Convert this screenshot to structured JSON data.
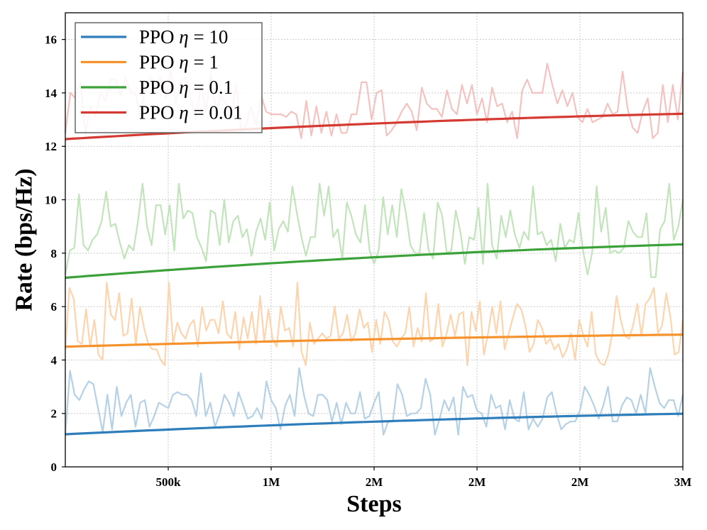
{
  "chart_data": {
    "type": "line",
    "title": "",
    "xlabel": "Steps",
    "ylabel": "Rate (bps/Hz)",
    "xlim": [
      0,
      3000000
    ],
    "ylim": [
      0,
      17
    ],
    "grid": true,
    "legend_position": "top-left",
    "x_tick_values": [
      500000,
      1000000,
      1500000,
      2000000,
      2500000,
      3000000
    ],
    "x_tick_labels": [
      "500k",
      "1M",
      "2M",
      "2M",
      "2M",
      "3M"
    ],
    "y_tick_values": [
      0,
      2,
      4,
      6,
      8,
      10,
      12,
      14,
      16
    ],
    "y_tick_labels": [
      "0",
      "2",
      "4",
      "6",
      "8",
      "10",
      "12",
      "14",
      "16"
    ],
    "series": [
      {
        "name": "PPO η = 10",
        "label_prefix": "PPO ",
        "label_symbol": "η",
        "label_suffix": " = 10",
        "color": "#2f7ebc",
        "raw_color": "#b5d1e6",
        "smooth_start": 1.22,
        "smooth_end": 1.99,
        "raw": [
          1.2,
          3.6,
          2.7,
          2.5,
          2.9,
          3.2,
          3.1,
          2.2,
          1.3,
          2.7,
          1.4,
          3.0,
          1.9,
          2.4,
          2.7,
          1.5,
          2.4,
          2.5,
          1.5,
          1.9,
          2.4,
          2.3,
          2.2,
          2.7,
          2.8,
          2.7,
          2.7,
          2.5,
          1.9,
          3.5,
          1.9,
          2.4,
          1.5,
          2.0,
          2.7,
          2.4,
          1.9,
          2.8,
          2.3,
          1.8,
          1.9,
          2.2,
          1.8,
          3.2,
          2.5,
          2.2,
          1.4,
          2.3,
          2.7,
          1.9,
          3.7,
          2.7,
          2.0,
          1.9,
          2.7,
          2.7,
          2.5,
          1.7,
          2.4,
          1.6,
          2.4,
          2.0,
          2.0,
          2.8,
          1.8,
          1.9,
          2.4,
          2.8,
          1.2,
          1.7,
          1.7,
          3.1,
          2.7,
          1.9,
          2.0,
          2.0,
          2.2,
          3.3,
          2.7,
          1.2,
          1.8,
          2.5,
          2.1,
          2.6,
          1.2,
          3.0,
          2.6,
          2.7,
          2.1,
          2.0,
          1.5,
          2.7,
          2.2,
          2.3,
          1.4,
          2.5,
          1.8,
          1.7,
          2.8,
          1.4,
          1.8,
          1.5,
          1.8,
          2.6,
          2.8,
          2.0,
          1.4,
          1.6,
          1.7,
          1.7,
          2.1,
          3.0,
          2.7,
          2.3,
          1.8,
          2.3,
          3.0,
          1.7,
          1.7,
          2.3,
          2.6,
          2.5,
          2.0,
          2.7,
          2.0,
          3.7,
          3.0,
          2.4,
          2.2,
          2.5,
          2.5,
          1.9,
          2.7
        ]
      },
      {
        "name": "PPO η = 1",
        "label_prefix": "PPO ",
        "label_symbol": "η",
        "label_suffix": " = 1",
        "color": "#f5922c",
        "raw_color": "#fcd4ad",
        "smooth_start": 4.5,
        "smooth_end": 4.95,
        "raw": [
          4.4,
          6.7,
          6.3,
          4.7,
          4.6,
          5.9,
          4.5,
          5.5,
          4.2,
          4.0,
          6.9,
          5.7,
          5.5,
          6.5,
          4.9,
          5.0,
          6.3,
          4.6,
          6.0,
          5.2,
          4.6,
          4.4,
          4.4,
          4.0,
          3.8,
          6.9,
          4.6,
          5.4,
          5.0,
          4.8,
          5.3,
          5.5,
          4.5,
          6.0,
          5.1,
          5.5,
          5.5,
          5.0,
          6.2,
          5.0,
          4.8,
          5.8,
          4.4,
          5.6,
          4.8,
          5.8,
          4.6,
          6.4,
          4.7,
          5.9,
          4.8,
          4.5,
          6.0,
          5.1,
          5.2,
          4.5,
          6.9,
          4.3,
          3.8,
          5.4,
          4.6,
          4.8,
          5.0,
          4.8,
          4.9,
          6.0,
          4.8,
          5.0,
          5.7,
          4.7,
          5.0,
          5.9,
          5.2,
          5.4,
          4.3,
          5.5,
          4.6,
          5.8,
          5.5,
          4.7,
          4.5,
          4.8,
          5.0,
          6.0,
          4.5,
          5.2,
          4.7,
          6.5,
          4.7,
          4.8,
          6.1,
          4.5,
          5.0,
          5.7,
          4.9,
          5.7,
          5.8,
          3.8,
          5.8,
          5.1,
          6.2,
          4.2,
          5.0,
          6.0,
          5.0,
          6.2,
          4.4,
          5.0,
          5.6,
          6.1,
          5.9,
          5.3,
          4.3,
          4.6,
          5.5,
          5.2,
          4.6,
          4.8,
          4.4,
          4.6,
          4.1,
          4.4,
          5.0,
          4.0,
          5.5,
          4.9,
          4.5,
          5.8,
          4.2,
          3.9,
          3.8,
          4.2,
          5.0,
          6.4,
          5.5,
          4.9,
          4.8,
          5.3,
          6.1,
          4.9,
          6.1,
          6.3,
          6.7,
          5.0,
          5.3,
          6.5,
          5.6,
          4.2,
          4.3,
          5.5
        ]
      },
      {
        "name": "PPO η = 0.1",
        "label_prefix": "PPO ",
        "label_symbol": "η",
        "label_suffix": " = 0.1",
        "color": "#3ba23a",
        "raw_color": "#c1e4bb",
        "smooth_start": 7.08,
        "smooth_end": 8.33,
        "raw": [
          7.2,
          8.1,
          8.2,
          10.2,
          8.3,
          8.1,
          8.5,
          8.7,
          9.2,
          10.3,
          9.0,
          9.1,
          8.4,
          7.8,
          8.3,
          8.1,
          9.2,
          10.6,
          9.0,
          8.3,
          9.8,
          9.8,
          8.7,
          9.8,
          8.1,
          10.6,
          9.3,
          9.6,
          9.5,
          8.6,
          8.2,
          7.7,
          9.6,
          9.5,
          8.3,
          10.0,
          8.4,
          9.2,
          9.4,
          8.6,
          8.9,
          7.9,
          8.8,
          9.3,
          8.5,
          9.9,
          8.1,
          8.9,
          9.2,
          8.8,
          10.5,
          9.5,
          8.6,
          7.9,
          8.6,
          8.6,
          10.6,
          9.4,
          10.5,
          8.6,
          8.9,
          7.8,
          9.9,
          9.4,
          8.7,
          8.4,
          9.8,
          8.1,
          7.6,
          8.1,
          10.1,
          8.7,
          9.8,
          8.6,
          10.4,
          9.5,
          8.3,
          8.0,
          8.0,
          9.5,
          8.1,
          7.8,
          9.9,
          9.4,
          8.0,
          8.1,
          9.6,
          8.8,
          7.6,
          8.6,
          8.5,
          9.7,
          7.6,
          10.6,
          8.3,
          7.8,
          9.4,
          8.6,
          9.6,
          8.7,
          8.2,
          8.8,
          8.5,
          10.5,
          8.7,
          8.8,
          8.3,
          8.5,
          7.7,
          9.1,
          8.2,
          8.5,
          8.4,
          9.5,
          8.1,
          7.2,
          8.0,
          10.5,
          8.8,
          9.7,
          8.0,
          8.1,
          8.0,
          8.2,
          9.2,
          8.8,
          8.6,
          8.6,
          9.5,
          7.1,
          7.1,
          8.9,
          9.2,
          10.6,
          8.5,
          9.0,
          10.0
        ]
      },
      {
        "name": "PPO η = 0.01",
        "label_prefix": "PPO ",
        "label_symbol": "η",
        "label_suffix": " = 0.01",
        "color": "#d43a32",
        "raw_color": "#f4c2c0",
        "smooth_start": 12.27,
        "smooth_end": 13.22,
        "raw": [
          12.5,
          14.0,
          13.8,
          14.4,
          12.5,
          13.5,
          13.1,
          14.0,
          13.7,
          14.5,
          14.5,
          13.9,
          14.6,
          14.0,
          14.0,
          13.0,
          14.3,
          14.6,
          14.3,
          14.6,
          13.8,
          14.8,
          13.6,
          14.4,
          14.6,
          13.8,
          13.0,
          14.3,
          13.3,
          14.7,
          13.3,
          13.9,
          13.6,
          13.0,
          14.3,
          12.6,
          12.8,
          13.5,
          12.8,
          13.9,
          13.3,
          13.2,
          13.2,
          13.2,
          13.1,
          13.3,
          13.2,
          12.3,
          13.7,
          12.4,
          13.5,
          12.5,
          13.3,
          12.4,
          13.2,
          12.5,
          12.5,
          13.2,
          13.2,
          14.4,
          14.4,
          13.0,
          14.0,
          14.1,
          12.4,
          12.6,
          12.9,
          13.3,
          13.6,
          13.3,
          12.6,
          14.2,
          13.6,
          13.4,
          13.4,
          13.1,
          14.1,
          13.4,
          13.2,
          14.3,
          13.6,
          14.3,
          13.2,
          13.8,
          12.9,
          14.2,
          13.5,
          13.6,
          12.9,
          13.3,
          12.3,
          14.1,
          14.5,
          14.0,
          14.0,
          14.0,
          15.1,
          14.3,
          13.6,
          14.1,
          13.5,
          14.0,
          13.1,
          12.9,
          13.4,
          12.9,
          13.0,
          13.1,
          13.6,
          13.2,
          13.3,
          14.8,
          13.4,
          12.7,
          12.5,
          13.3,
          13.8,
          12.3,
          12.5,
          14.3,
          12.9,
          14.3,
          13.0,
          14.8
        ]
      }
    ]
  }
}
